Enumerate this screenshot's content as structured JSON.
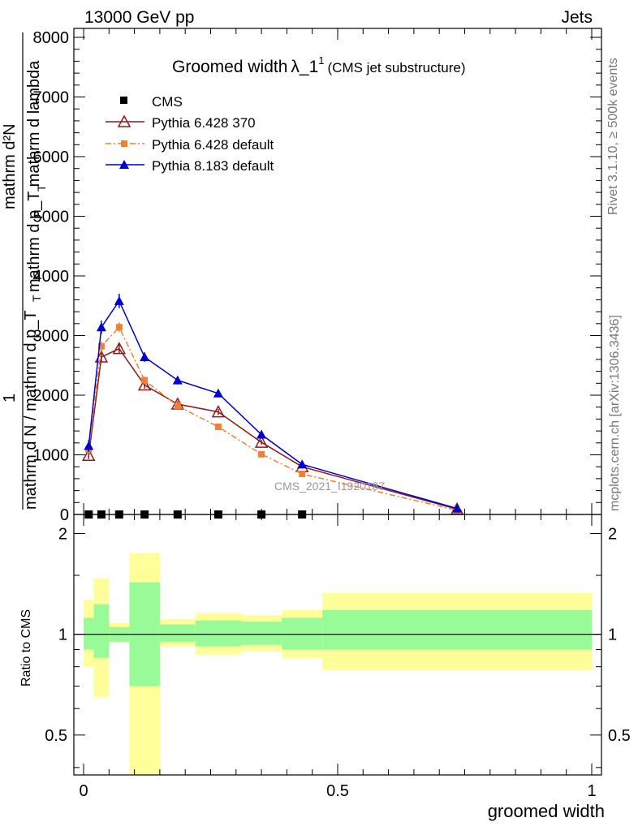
{
  "header": {
    "left": "13000 GeV pp",
    "right": "Jets"
  },
  "side": {
    "rivet": "Rivet 3.1.10, ≥ 500k events",
    "mcplots": "mcplots.cern.ch [arXiv:1306.3436]"
  },
  "colors": {
    "py6_370": "#8b1a1a",
    "py6_default": "#f08030",
    "py8_default": "#0000cc",
    "cms": "#000000",
    "band_inner": "#98fb98",
    "band_outer": "#ffff99"
  },
  "chart_data": [
    {
      "type": "line",
      "title_main": "Groomed width",
      "title_lambda": "λ_1",
      "title_sup": "1",
      "title_sub": "(CMS jet substructure)",
      "ylabel_top": "mathrm d²N",
      "ylabel_mid": "mathrm d p_T mathrm d lambda",
      "ylabel_t": "T",
      "ylabel_one": "1",
      "ylabel_bot": "mathrm d N / mathrm d p_T",
      "ylabel_bot_t": "T",
      "watermark": "CMS_2021_I1920187",
      "xlim": [
        0,
        1
      ],
      "ylim": [
        0,
        8150
      ],
      "yticks": [
        {
          "v": 0,
          "label": "0"
        },
        {
          "v": 1000,
          "label": "1000"
        },
        {
          "v": 2000,
          "label": "2000"
        },
        {
          "v": 3000,
          "label": "3000"
        },
        {
          "v": 4000,
          "label": "4000"
        },
        {
          "v": 5000,
          "label": "5000"
        },
        {
          "v": 6000,
          "label": "6000"
        },
        {
          "v": 7000,
          "label": "7000"
        },
        {
          "v": 8000,
          "label": "8000"
        }
      ],
      "legend": [
        "CMS",
        "Pythia 6.428 370",
        "Pythia 6.428 default",
        "Pythia 8.183 default"
      ],
      "series": [
        {
          "name": "CMS",
          "x": [
            0.01,
            0.035,
            0.07,
            0.12,
            0.185,
            0.265,
            0.35,
            0.43
          ],
          "y": [
            0,
            0,
            0,
            0,
            0,
            0,
            0,
            0
          ]
        },
        {
          "name": "Pythia 6.428 370",
          "x": [
            0.01,
            0.035,
            0.07,
            0.12,
            0.185,
            0.265,
            0.35,
            0.43,
            0.735
          ],
          "y": [
            990,
            2640,
            2780,
            2170,
            1850,
            1720,
            1210,
            800,
            90
          ],
          "err": [
            60,
            80,
            80,
            60,
            50,
            50,
            40,
            30,
            10
          ]
        },
        {
          "name": "Pythia 6.428 default",
          "x": [
            0.01,
            0.035,
            0.07,
            0.12,
            0.185,
            0.265,
            0.35,
            0.43,
            0.735
          ],
          "y": [
            1090,
            2820,
            3140,
            2250,
            1820,
            1470,
            1010,
            680,
            70
          ],
          "err": [
            60,
            80,
            80,
            60,
            50,
            50,
            40,
            30,
            10
          ]
        },
        {
          "name": "Pythia 8.183 default",
          "x": [
            0.01,
            0.035,
            0.07,
            0.12,
            0.185,
            0.265,
            0.35,
            0.43,
            0.735
          ],
          "y": [
            1150,
            3140,
            3580,
            2640,
            2250,
            2030,
            1340,
            840,
            100
          ],
          "err": [
            100,
            110,
            120,
            80,
            70,
            60,
            50,
            40,
            15
          ]
        }
      ]
    },
    {
      "type": "area",
      "ylabel": "Ratio to CMS",
      "xlabel": "groomed width",
      "xlim": [
        0,
        1
      ],
      "ylim": [
        0.38,
        2.28
      ],
      "yscale": "log",
      "yticks": [
        {
          "v": 0.5,
          "label": "0.5"
        },
        {
          "v": 1,
          "label": "1"
        },
        {
          "v": 2,
          "label": "2"
        }
      ],
      "xticks": [
        {
          "v": 0,
          "label": "0"
        },
        {
          "v": 0.5,
          "label": "0.5"
        },
        {
          "v": 1,
          "label": "1"
        }
      ],
      "bands": [
        {
          "x0": 0.0,
          "x1": 0.02,
          "inner": [
            0.9,
            1.12
          ],
          "outer": [
            0.8,
            1.27
          ]
        },
        {
          "x0": 0.02,
          "x1": 0.05,
          "inner": [
            0.85,
            1.23
          ],
          "outer": [
            0.65,
            1.47
          ]
        },
        {
          "x0": 0.05,
          "x1": 0.09,
          "inner": [
            0.95,
            1.05
          ],
          "outer": [
            0.95,
            1.08
          ]
        },
        {
          "x0": 0.09,
          "x1": 0.15,
          "inner": [
            0.7,
            1.43
          ],
          "outer": [
            0.3,
            1.75
          ]
        },
        {
          "x0": 0.15,
          "x1": 0.22,
          "inner": [
            0.95,
            1.07
          ],
          "outer": [
            0.92,
            1.11
          ]
        },
        {
          "x0": 0.22,
          "x1": 0.31,
          "inner": [
            0.92,
            1.1
          ],
          "outer": [
            0.87,
            1.16
          ]
        },
        {
          "x0": 0.31,
          "x1": 0.39,
          "inner": [
            0.93,
            1.09
          ],
          "outer": [
            0.89,
            1.14
          ]
        },
        {
          "x0": 0.39,
          "x1": 0.47,
          "inner": [
            0.9,
            1.12
          ],
          "outer": [
            0.85,
            1.18
          ]
        },
        {
          "x0": 0.47,
          "x1": 1.0,
          "inner": [
            0.9,
            1.18
          ],
          "outer": [
            0.78,
            1.33
          ]
        }
      ]
    }
  ]
}
